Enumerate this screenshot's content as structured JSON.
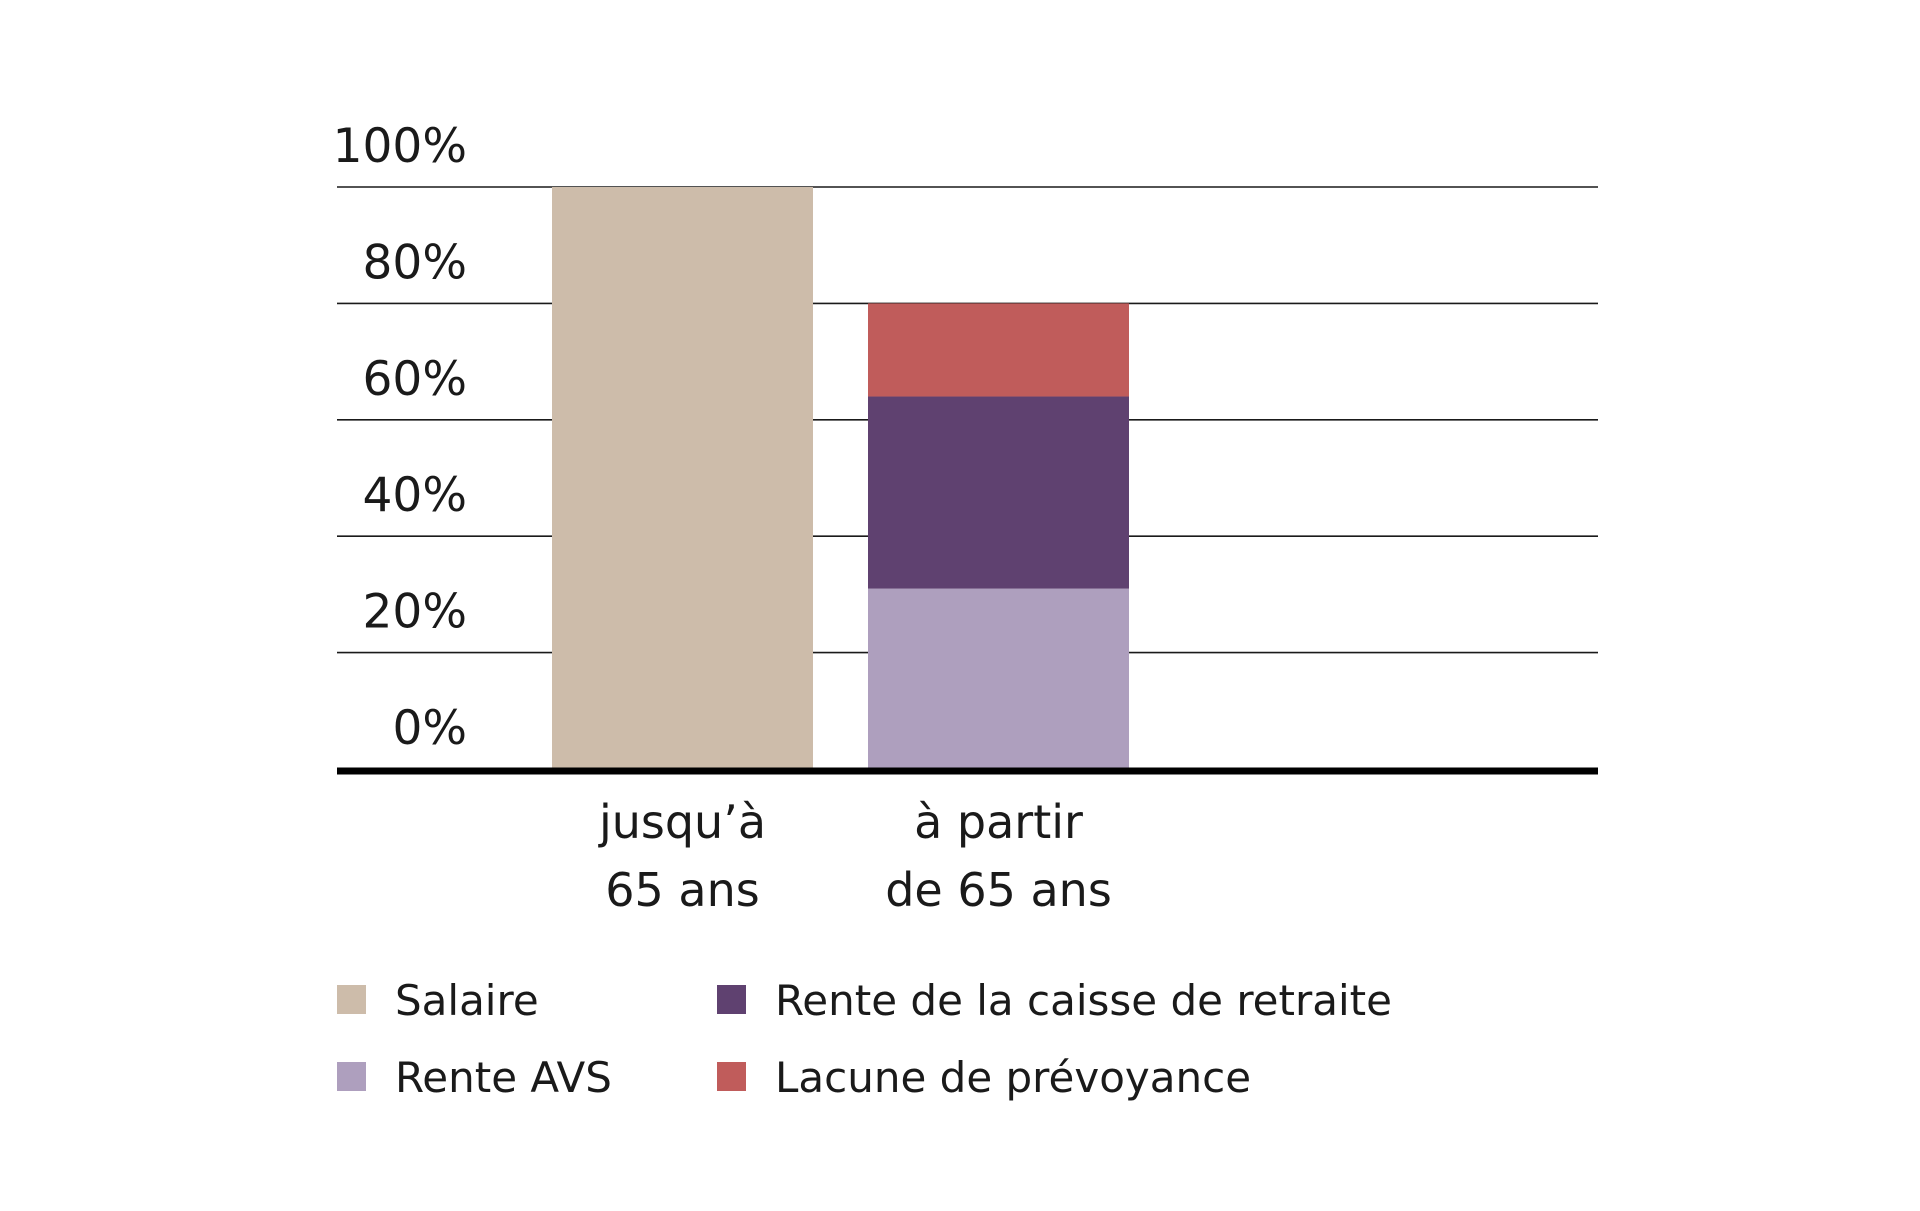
{
  "chart_data": {
    "type": "bar",
    "stacked": true,
    "categories": [
      [
        "jusqu’à",
        "65 ans"
      ],
      [
        "à partir",
        "de 65 ans"
      ]
    ],
    "series": [
      {
        "name": "Salaire",
        "color": "#cdbcaa",
        "values": [
          100,
          0
        ]
      },
      {
        "name": "Rente AVS",
        "color": "#ae9fbe",
        "values": [
          0,
          31
        ]
      },
      {
        "name": "Rente de la caisse de retraite",
        "color": "#5f4170",
        "values": [
          0,
          33
        ]
      },
      {
        "name": "Lacune de prévoyance",
        "color": "#c05c5b",
        "values": [
          0,
          16
        ]
      }
    ],
    "ylim": [
      0,
      100
    ],
    "yticks": [
      0,
      20,
      40,
      60,
      80,
      100
    ],
    "ytick_labels": [
      "0%",
      "20%",
      "40%",
      "60%",
      "80%",
      "100%"
    ],
    "grid": true,
    "legend": {
      "placement": "bottom",
      "order": [
        "Salaire",
        "Rente de la caisse de retraite",
        "Rente AVS",
        "Lacune de prévoyance"
      ]
    }
  }
}
